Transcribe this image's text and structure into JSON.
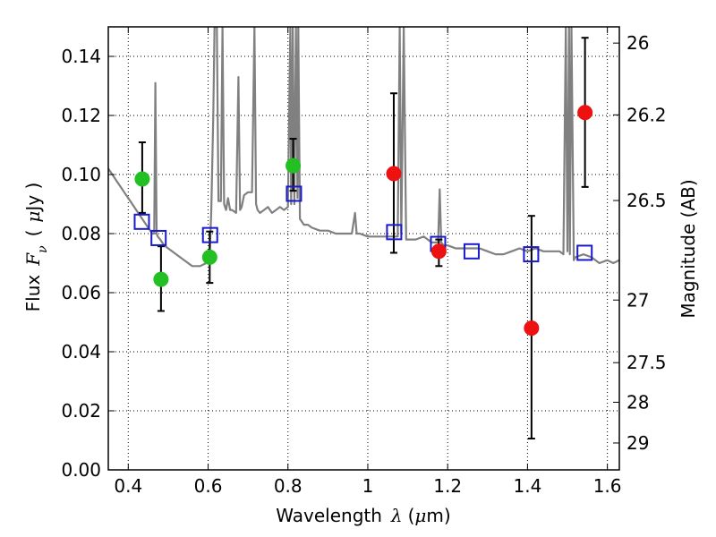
{
  "chart_data": {
    "type": "scatter",
    "xlabel_prefix": "Wavelength",
    "xlabel_symbol": "λ",
    "xlabel_unit_open": "(",
    "xlabel_unit_mu": "μ",
    "xlabel_unit_rest": "m)",
    "ylabel_prefix": "Flux",
    "ylabel_symbol": "F",
    "ylabel_sub": "ν",
    "ylabel_unit_open": "(",
    "ylabel_unit_mu": "μ",
    "ylabel_unit_rest": "Jy )",
    "y2label": "Magnitude (AB)",
    "xlim": [
      0.35,
      1.63
    ],
    "ylim": [
      0.0,
      0.15
    ],
    "xticks": [
      0.4,
      0.6,
      0.8,
      1.0,
      1.2,
      1.4,
      1.6
    ],
    "xtick_labels": [
      "0.4",
      "0.6",
      "0.8",
      "1",
      "1.2",
      "1.4",
      "1.6"
    ],
    "yticks": [
      0.0,
      0.02,
      0.04,
      0.06,
      0.08,
      0.1,
      0.12,
      0.14
    ],
    "ytick_labels": [
      "0.00",
      "0.02",
      "0.04",
      "0.06",
      "0.08",
      "0.10",
      "0.12",
      "0.14"
    ],
    "y2ticks": [
      {
        "label": "26",
        "flux": 0.1445
      },
      {
        "label": "26.2",
        "flux": 0.1202
      },
      {
        "label": "26.5",
        "flux": 0.0912
      },
      {
        "label": "27",
        "flux": 0.0575
      },
      {
        "label": "27.5",
        "flux": 0.0363
      },
      {
        "label": "28",
        "flux": 0.0229
      },
      {
        "label": "29",
        "flux": 0.0091
      }
    ],
    "colors": {
      "spectrum": "#808080",
      "green": "#22c022",
      "red": "#ee1111",
      "model": "#1a1acc",
      "errorbar": "#000000"
    },
    "series": [
      {
        "name": "spectrum",
        "kind": "line",
        "x": [
          0.35,
          0.36,
          0.37,
          0.38,
          0.39,
          0.4,
          0.41,
          0.42,
          0.43,
          0.44,
          0.45,
          0.46,
          0.465,
          0.468,
          0.471,
          0.474,
          0.48,
          0.49,
          0.5,
          0.52,
          0.54,
          0.56,
          0.58,
          0.595,
          0.6,
          0.604,
          0.608,
          0.613,
          0.616,
          0.619,
          0.622,
          0.626,
          0.632,
          0.636,
          0.64,
          0.645,
          0.65,
          0.655,
          0.66,
          0.67,
          0.676,
          0.68,
          0.684,
          0.69,
          0.7,
          0.71,
          0.716,
          0.72,
          0.724,
          0.73,
          0.74,
          0.75,
          0.76,
          0.77,
          0.78,
          0.79,
          0.8,
          0.806,
          0.808,
          0.812,
          0.816,
          0.82,
          0.824,
          0.826,
          0.83,
          0.84,
          0.85,
          0.86,
          0.88,
          0.9,
          0.92,
          0.94,
          0.96,
          0.968,
          0.972,
          0.976,
          0.98,
          1.0,
          1.02,
          1.04,
          1.06,
          1.075,
          1.08,
          1.084,
          1.09,
          1.096,
          1.1,
          1.12,
          1.14,
          1.16,
          1.176,
          1.18,
          1.184,
          1.19,
          1.2,
          1.22,
          1.24,
          1.26,
          1.28,
          1.3,
          1.32,
          1.34,
          1.36,
          1.38,
          1.4,
          1.42,
          1.44,
          1.46,
          1.48,
          1.49,
          1.496,
          1.5,
          1.504,
          1.506,
          1.51,
          1.516,
          1.52,
          1.54,
          1.56,
          1.58,
          1.6,
          1.615,
          1.63
        ],
        "y": [
          0.102,
          0.1,
          0.098,
          0.096,
          0.094,
          0.092,
          0.09,
          0.088,
          0.086,
          0.084,
          0.082,
          0.08,
          0.08,
          0.131,
          0.08,
          0.079,
          0.078,
          0.076,
          0.075,
          0.073,
          0.071,
          0.069,
          0.069,
          0.07,
          0.071,
          0.073,
          0.088,
          0.12,
          0.15,
          0.15,
          0.15,
          0.091,
          0.091,
          0.15,
          0.09,
          0.088,
          0.092,
          0.088,
          0.088,
          0.087,
          0.133,
          0.088,
          0.089,
          0.093,
          0.094,
          0.094,
          0.15,
          0.09,
          0.088,
          0.087,
          0.088,
          0.089,
          0.087,
          0.088,
          0.089,
          0.088,
          0.089,
          0.15,
          0.09,
          0.15,
          0.09,
          0.15,
          0.092,
          0.15,
          0.085,
          0.083,
          0.083,
          0.082,
          0.081,
          0.081,
          0.08,
          0.08,
          0.08,
          0.087,
          0.08,
          0.08,
          0.08,
          0.079,
          0.079,
          0.079,
          0.079,
          0.079,
          0.15,
          0.08,
          0.15,
          0.078,
          0.078,
          0.078,
          0.079,
          0.077,
          0.077,
          0.095,
          0.077,
          0.076,
          0.076,
          0.075,
          0.075,
          0.075,
          0.075,
          0.074,
          0.073,
          0.073,
          0.074,
          0.075,
          0.074,
          0.075,
          0.074,
          0.074,
          0.074,
          0.073,
          0.15,
          0.074,
          0.15,
          0.073,
          0.15,
          0.071,
          0.072,
          0.073,
          0.072,
          0.07,
          0.071,
          0.07,
          0.071
        ]
      },
      {
        "name": "photometry-green",
        "kind": "points",
        "x": [
          0.435,
          0.482,
          0.604,
          0.813
        ],
        "y": [
          0.0985,
          0.0645,
          0.072,
          0.103
        ],
        "yerr_low": [
          0.0115,
          0.0107,
          0.0087,
          0.0085
        ],
        "yerr_high": [
          0.0124,
          0.0112,
          0.0087,
          0.0091
        ]
      },
      {
        "name": "photometry-red",
        "kind": "points",
        "x": [
          1.065,
          1.178,
          1.41,
          1.544
        ],
        "y": [
          0.1003,
          0.074,
          0.048,
          0.121
        ],
        "yerr_low": [
          0.0268,
          0.005,
          0.0374,
          0.0252
        ],
        "yerr_high": [
          0.0272,
          0.004,
          0.038,
          0.0253
        ]
      },
      {
        "name": "model-points",
        "kind": "points",
        "x": [
          0.434,
          0.476,
          0.605,
          0.815,
          1.066,
          1.176,
          1.26,
          1.409,
          1.543
        ],
        "y": [
          0.084,
          0.0785,
          0.0795,
          0.0935,
          0.0805,
          0.0765,
          0.074,
          0.073,
          0.0735
        ]
      }
    ]
  }
}
